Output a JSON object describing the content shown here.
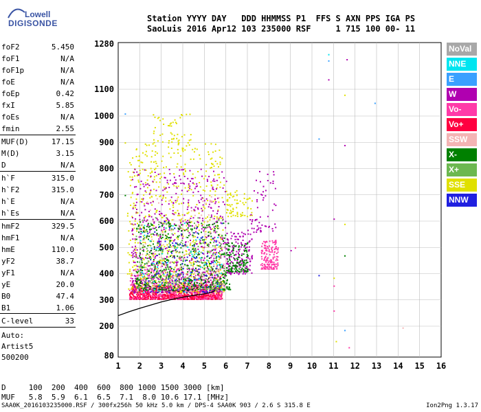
{
  "logo": {
    "line1": "Lowell",
    "line2": "DIGISONDE"
  },
  "header": {
    "line1": "Station YYYY DAY   DDD HHMMSS P1  FFS S AXN PPS IGA PS",
    "line2": "SaoLuis 2016 Apr12 103 235000 RSF     1 715 100 00- 11"
  },
  "params": [
    {
      "k": "foF2",
      "v": "5.450"
    },
    {
      "k": "foF1",
      "v": "N/A"
    },
    {
      "k": "foF1p",
      "v": "N/A"
    },
    {
      "k": "foE",
      "v": "N/A"
    },
    {
      "k": "foEp",
      "v": "0.42"
    },
    {
      "k": "fxI",
      "v": "5.85"
    },
    {
      "k": "foEs",
      "v": "N/A"
    },
    {
      "k": "fmin",
      "v": "2.55"
    },
    {
      "k": "MUF(D)",
      "v": "17.15"
    },
    {
      "k": "M(D)",
      "v": "3.15"
    },
    {
      "k": "D",
      "v": "N/A"
    },
    {
      "k": "h`F",
      "v": "315.0"
    },
    {
      "k": "h`F2",
      "v": "315.0"
    },
    {
      "k": "h`E",
      "v": "N/A"
    },
    {
      "k": "h`Es",
      "v": "N/A"
    },
    {
      "k": "hmF2",
      "v": "329.5"
    },
    {
      "k": "hmF1",
      "v": "N/A"
    },
    {
      "k": "hmE",
      "v": "110.0"
    },
    {
      "k": "yF2",
      "v": "38.7"
    },
    {
      "k": "yF1",
      "v": "N/A"
    },
    {
      "k": "yE",
      "v": "20.0"
    },
    {
      "k": "B0",
      "v": "47.4"
    },
    {
      "k": "B1",
      "v": "1.06"
    },
    {
      "k": "C-level",
      "v": "33"
    }
  ],
  "auto": {
    "l1": "Auto:",
    "l2": "Artist5",
    "l3": "500200"
  },
  "legend": [
    {
      "label": "NoVal",
      "color": "#a8a8a8",
      "text": "#ffffff"
    },
    {
      "label": "NNE",
      "color": "#00e5f0",
      "text": "#ffffff"
    },
    {
      "label": "E",
      "color": "#3aa0ff",
      "text": "#ffffff"
    },
    {
      "label": "W",
      "color": "#b000b0",
      "text": "#ffffff"
    },
    {
      "label": "Vo-",
      "color": "#ff3aa8",
      "text": "#ffffff"
    },
    {
      "label": "Vo+",
      "color": "#ff0040",
      "text": "#ffffff"
    },
    {
      "label": "SSW",
      "color": "#f4b4b4",
      "text": "#ffffff"
    },
    {
      "label": "X-",
      "color": "#008000",
      "text": "#ffffff"
    },
    {
      "label": "X+",
      "color": "#6cb850",
      "text": "#ffffff"
    },
    {
      "label": "SSE",
      "color": "#e0e000",
      "text": "#ffffff"
    },
    {
      "label": "NNW",
      "color": "#2020e0",
      "text": "#ffffff"
    }
  ],
  "bottom": {
    "d_line": "D     100  200  400  600  800 1000 1500 3000 [km]",
    "muf_line": "MUF   5.8  5.9  6.1  6.5  7.1  8.0 10.6 17.1 [MHz]"
  },
  "footer": {
    "left": "SAA0K_2016103235000.RSF / 300fx256h 50 kHz 5.0 km / DPS-4 SAA0K 903 / 2.6 S 315.8 E",
    "right": "Ion2Png 1.3.17"
  },
  "chart_data": {
    "type": "scatter",
    "title": "",
    "xlabel": "",
    "ylabel": "",
    "xlim": [
      1,
      16
    ],
    "ylim": [
      80,
      1280
    ],
    "x_ticks": [
      1,
      2,
      3,
      4,
      5,
      6,
      7,
      8,
      9,
      10,
      11,
      12,
      13,
      14,
      15,
      16
    ],
    "y_ticks": [
      80,
      200,
      300,
      400,
      500,
      600,
      700,
      800,
      900,
      1000,
      1100,
      1280
    ],
    "y_scale": "ionogram",
    "grid": true,
    "trace_curve": {
      "color": "#000000",
      "points": [
        [
          1.0,
          240
        ],
        [
          1.5,
          255
        ],
        [
          2.0,
          268
        ],
        [
          2.5,
          280
        ],
        [
          3.0,
          292
        ],
        [
          3.5,
          302
        ],
        [
          4.0,
          310
        ],
        [
          4.5,
          317
        ],
        [
          5.0,
          323
        ],
        [
          5.3,
          328
        ],
        [
          5.5,
          335
        ]
      ]
    },
    "trace_dashed": {
      "color": "#000000",
      "points": [
        [
          1.8,
          372
        ],
        [
          2.3,
          355
        ],
        [
          2.8,
          342
        ],
        [
          3.3,
          335
        ],
        [
          3.8,
          333
        ],
        [
          4.3,
          336
        ],
        [
          4.8,
          350
        ],
        [
          5.1,
          370
        ],
        [
          5.3,
          395
        ],
        [
          5.45,
          430
        ]
      ]
    },
    "echo_clusters": [
      {
        "color": "#ff0040",
        "x": [
          1.5,
          5.8
        ],
        "y": [
          305,
          360
        ],
        "n": 900
      },
      {
        "color": "#ff3aa8",
        "x": [
          1.5,
          5.8
        ],
        "y": [
          305,
          420
        ],
        "n": 350
      },
      {
        "color": "#e0e000",
        "x": [
          1.4,
          5.9
        ],
        "y": [
          330,
          900
        ],
        "n": 700
      },
      {
        "color": "#b000b0",
        "x": [
          1.6,
          6.0
        ],
        "y": [
          330,
          800
        ],
        "n": 700
      },
      {
        "color": "#008000",
        "x": [
          1.8,
          6.2
        ],
        "y": [
          340,
          600
        ],
        "n": 500
      },
      {
        "color": "#6cb850",
        "x": [
          1.8,
          6.0
        ],
        "y": [
          340,
          620
        ],
        "n": 250
      },
      {
        "color": "#f4b4b4",
        "x": [
          2.0,
          6.0
        ],
        "y": [
          330,
          700
        ],
        "n": 200
      },
      {
        "color": "#2020e0",
        "x": [
          2.0,
          5.8
        ],
        "y": [
          330,
          600
        ],
        "n": 120
      },
      {
        "color": "#00e5f0",
        "x": [
          2.0,
          5.8
        ],
        "y": [
          330,
          600
        ],
        "n": 60
      },
      {
        "color": "#ff3aa8",
        "x": [
          7.6,
          8.4
        ],
        "y": [
          420,
          530
        ],
        "n": 160
      },
      {
        "color": "#b000b0",
        "x": [
          6.0,
          7.2
        ],
        "y": [
          400,
          560
        ],
        "n": 160
      },
      {
        "color": "#008000",
        "x": [
          6.0,
          7.0
        ],
        "y": [
          410,
          520
        ],
        "n": 120
      },
      {
        "color": "#e0e000",
        "x": [
          6.0,
          7.2
        ],
        "y": [
          620,
          720
        ],
        "n": 70
      },
      {
        "color": "#b000b0",
        "x": [
          7.0,
          8.3
        ],
        "y": [
          560,
          800
        ],
        "n": 60
      },
      {
        "color": "#e0e000",
        "x": [
          2.6,
          4.4
        ],
        "y": [
          900,
          1010
        ],
        "n": 50
      }
    ],
    "sparse_points": [
      {
        "color": "#00e5f0",
        "x": 10.75,
        "y": 1240
      },
      {
        "color": "#3aa0ff",
        "x": 10.75,
        "y": 1215
      },
      {
        "color": "#b000b0",
        "x": 11.6,
        "y": 1220
      },
      {
        "color": "#e0e000",
        "x": 11.5,
        "y": 1080
      },
      {
        "color": "#3aa0ff",
        "x": 12.9,
        "y": 1050
      },
      {
        "color": "#b000b0",
        "x": 11.5,
        "y": 890
      },
      {
        "color": "#3aa0ff",
        "x": 10.3,
        "y": 915
      },
      {
        "color": "#b000b0",
        "x": 11.0,
        "y": 610
      },
      {
        "color": "#e0e000",
        "x": 11.5,
        "y": 590
      },
      {
        "color": "#008000",
        "x": 11.5,
        "y": 470
      },
      {
        "color": "#2020e0",
        "x": 10.3,
        "y": 395
      },
      {
        "color": "#ff3aa8",
        "x": 11.0,
        "y": 260
      },
      {
        "color": "#3aa0ff",
        "x": 11.5,
        "y": 185
      },
      {
        "color": "#f4b4b4",
        "x": 14.2,
        "y": 195
      },
      {
        "color": "#e0e000",
        "x": 11.1,
        "y": 140
      },
      {
        "color": "#ff3aa8",
        "x": 11.7,
        "y": 115
      },
      {
        "color": "#3aa0ff",
        "x": 1.3,
        "y": 1010
      },
      {
        "color": "#e0e000",
        "x": 1.3,
        "y": 900
      },
      {
        "color": "#008000",
        "x": 1.3,
        "y": 700
      },
      {
        "color": "#b000b0",
        "x": 10.75,
        "y": 1140
      },
      {
        "color": "#ff3aa8",
        "x": 11.0,
        "y": 355
      },
      {
        "color": "#e0e000",
        "x": 11.0,
        "y": 385
      },
      {
        "color": "#b000b0",
        "x": 9.0,
        "y": 490
      },
      {
        "color": "#ff3aa8",
        "x": 9.2,
        "y": 500
      }
    ]
  }
}
